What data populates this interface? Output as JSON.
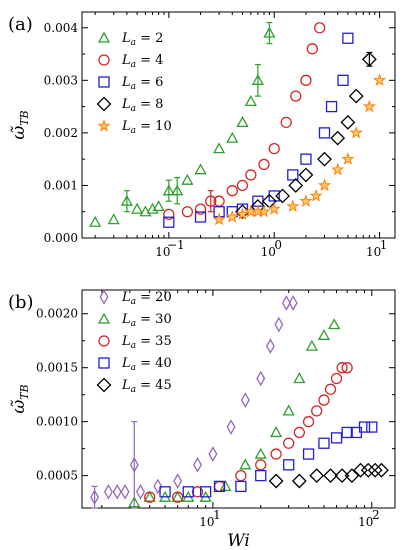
{
  "chart_data": [
    {
      "type": "scatter",
      "panel_label": "(a)",
      "ylabel": "ω̃",
      "ylabel_sub": "TB",
      "xlabel": "",
      "xscale": "log",
      "xlim": [
        0.015,
        14
      ],
      "ylim": [
        0,
        0.0043
      ],
      "x_ticks": [
        {
          "v": 0.1,
          "label": "10",
          "exp": "−1"
        },
        {
          "v": 1,
          "label": "10",
          "exp": "0"
        },
        {
          "v": 10,
          "label": "10",
          "exp": "1"
        }
      ],
      "y_ticks": [
        {
          "v": 0,
          "label": "0.000"
        },
        {
          "v": 0.001,
          "label": "0.001"
        },
        {
          "v": 0.002,
          "label": "0.002"
        },
        {
          "v": 0.003,
          "label": "0.003"
        },
        {
          "v": 0.004,
          "label": "0.004"
        }
      ],
      "legend_position": "top-left",
      "series": [
        {
          "name": "L",
          "sub": "a",
          "value": "= 2",
          "marker": "triangle",
          "color": "#2ca02c",
          "x": [
            0.02,
            0.03,
            0.04,
            0.05,
            0.06,
            0.07,
            0.08,
            0.1,
            0.12,
            0.15,
            0.2,
            0.3,
            0.4,
            0.5,
            0.6,
            0.7,
            0.9
          ],
          "y": [
            0.0003,
            0.00035,
            0.0007,
            0.00055,
            0.0005,
            0.00055,
            0.0006,
            0.0009,
            0.0009,
            0.0011,
            0.0013,
            0.0017,
            0.0019,
            0.0022,
            0.0026,
            0.003,
            0.0039
          ],
          "err": [
            0,
            0,
            0.0002,
            0,
            0,
            0,
            0,
            0.0002,
            0.00025,
            0,
            0,
            0,
            0,
            0,
            0,
            0.0003,
            0.0002
          ]
        },
        {
          "name": "L",
          "sub": "a",
          "value": "= 4",
          "marker": "circle",
          "color": "#d62728",
          "x": [
            0.1,
            0.15,
            0.2,
            0.25,
            0.3,
            0.4,
            0.5,
            0.6,
            0.8,
            1.0,
            1.3,
            1.6,
            2.0,
            2.3,
            2.7
          ],
          "y": [
            0.00045,
            0.0005,
            0.00055,
            0.0007,
            0.0007,
            0.0009,
            0.001,
            0.0012,
            0.0014,
            0.0017,
            0.0022,
            0.0027,
            0.003,
            0.0036,
            0.004
          ],
          "err": [
            0,
            0,
            0,
            0.0002,
            0,
            0,
            0,
            0,
            0,
            0,
            0,
            0,
            0,
            0,
            0
          ]
        },
        {
          "name": "L",
          "sub": "a",
          "value": "= 6",
          "marker": "square",
          "color": "#1f1fd6",
          "x": [
            0.1,
            0.2,
            0.3,
            0.4,
            0.5,
            0.7,
            1.0,
            1.5,
            2.0,
            3.0,
            3.5,
            4.5,
            5.0
          ],
          "y": [
            0.0003,
            0.0004,
            0.0005,
            0.0005,
            0.00055,
            0.0007,
            0.0008,
            0.0012,
            0.0015,
            0.002,
            0.0025,
            0.003,
            0.0038
          ],
          "err": [
            0,
            0,
            0,
            0,
            0,
            0,
            0,
            0,
            0,
            0,
            0,
            0,
            0
          ]
        },
        {
          "name": "L",
          "sub": "a",
          "value": "= 8",
          "marker": "diamond",
          "color": "#000000",
          "x": [
            0.5,
            0.7,
            0.9,
            1.2,
            1.6,
            2.0,
            3.0,
            4.0,
            5.0,
            6.0,
            8.0
          ],
          "y": [
            0.0005,
            0.0006,
            0.0007,
            0.0008,
            0.001,
            0.0012,
            0.0015,
            0.0019,
            0.0022,
            0.0027,
            0.0034
          ],
          "err": [
            0,
            0,
            0,
            0,
            0,
            0,
            0,
            0,
            0,
            0,
            0.00013
          ]
        },
        {
          "name": "L",
          "sub": "a",
          "value": "= 10",
          "marker": "star",
          "color": "#ff7f0e",
          "x": [
            0.3,
            0.4,
            0.5,
            0.6,
            0.7,
            0.8,
            1.0,
            1.5,
            2.0,
            2.5,
            3.0,
            4.0,
            5.0,
            6.0,
            8.0,
            10.0
          ],
          "y": [
            0.00035,
            0.0004,
            0.00045,
            0.0005,
            0.0005,
            0.0005,
            0.00055,
            0.0006,
            0.0007,
            0.0008,
            0.001,
            0.0013,
            0.0015,
            0.002,
            0.0025,
            0.003
          ],
          "err": [
            0,
            0,
            0,
            0,
            0,
            0,
            0,
            0,
            0,
            0,
            0,
            0,
            0,
            0,
            0,
            0
          ]
        }
      ]
    },
    {
      "type": "scatter",
      "panel_label": "(b)",
      "ylabel": "ω̃",
      "ylabel_sub": "TB",
      "xlabel": "Wi",
      "xscale": "log",
      "xlim": [
        1.5,
        140
      ],
      "ylim": [
        0.0002,
        0.00222
      ],
      "x_ticks": [
        {
          "v": 10,
          "label": "10",
          "exp": "1"
        },
        {
          "v": 100,
          "label": "10",
          "exp": "2"
        }
      ],
      "y_ticks": [
        {
          "v": 0.0005,
          "label": "0.0005"
        },
        {
          "v": 0.001,
          "label": "0.0010"
        },
        {
          "v": 0.0015,
          "label": "0.0015"
        },
        {
          "v": 0.002,
          "label": "0.0020"
        }
      ],
      "legend_position": "top-left",
      "series": [
        {
          "name": "L",
          "sub": "a",
          "value": "= 20",
          "marker": "thin-diamond",
          "color": "#9467bd",
          "x": [
            1.8,
            2.2,
            2.5,
            2.8,
            3.2,
            3.5,
            4.5,
            6.0,
            8.0,
            10.0,
            13.0,
            16.0,
            20.0,
            23.0,
            26.0,
            29.0,
            32.0
          ],
          "y": [
            0.0003,
            0.00035,
            0.00035,
            0.00035,
            0.0006,
            0.00035,
            0.0004,
            0.00045,
            0.0006,
            0.0007,
            0.00095,
            0.0012,
            0.0014,
            0.0017,
            0.0019,
            0.0021,
            0.0021
          ],
          "err": [
            0.0001,
            0,
            0,
            0,
            0.0004,
            0,
            0,
            0,
            0,
            0,
            0,
            0,
            0,
            0,
            0,
            0,
            0
          ]
        },
        {
          "name": "L",
          "sub": "a",
          "value": "= 30",
          "marker": "triangle",
          "color": "#2ca02c",
          "x": [
            3.2,
            4.0,
            5.0,
            6.0,
            7.0,
            9.0,
            12.0,
            16.0,
            20.0,
            25.0,
            30.0,
            35.0,
            42.0,
            50.0,
            58.0
          ],
          "y": [
            0.00025,
            0.0003,
            0.0003,
            0.0003,
            0.0003,
            0.0003,
            0.0004,
            0.0006,
            0.0007,
            0.0009,
            0.0011,
            0.0014,
            0.0017,
            0.0018,
            0.0019
          ],
          "err": [
            0,
            0,
            0,
            0,
            0,
            0,
            0,
            0,
            0,
            0,
            0,
            0,
            0,
            0,
            0
          ]
        },
        {
          "name": "L",
          "sub": "a",
          "value": "= 35",
          "marker": "circle",
          "color": "#d62728",
          "x": [
            4.0,
            6.0,
            8.0,
            11.0,
            15.0,
            20.0,
            25.0,
            30.0,
            35.0,
            40.0,
            45.0,
            50.0,
            55.0,
            60.0,
            65.0,
            70.0
          ],
          "y": [
            0.0003,
            0.0003,
            0.00035,
            0.0004,
            0.0005,
            0.0006,
            0.0007,
            0.0008,
            0.0009,
            0.001,
            0.0011,
            0.0012,
            0.0013,
            0.0014,
            0.0015,
            0.0015
          ],
          "err": [
            0,
            0,
            0,
            0,
            0,
            0,
            0,
            0,
            0,
            0,
            0,
            0,
            0,
            0,
            0,
            0
          ]
        },
        {
          "name": "L",
          "sub": "a",
          "value": "= 40",
          "marker": "square",
          "color": "#1f1fd6",
          "x": [
            5.0,
            7.0,
            9.0,
            11.0,
            15.0,
            20.0,
            30.0,
            40.0,
            50.0,
            60.0,
            70.0,
            80.0,
            90.0,
            100.0
          ],
          "y": [
            0.00035,
            0.00035,
            0.00035,
            0.0004,
            0.0004,
            0.0005,
            0.0006,
            0.0007,
            0.0008,
            0.00085,
            0.0009,
            0.0009,
            0.00095,
            0.00095
          ],
          "err": [
            0,
            0,
            0,
            0,
            0,
            0,
            0,
            0,
            0,
            0,
            0,
            0,
            0,
            0
          ]
        },
        {
          "name": "L",
          "sub": "a",
          "value": "= 45",
          "marker": "diamond",
          "color": "#000000",
          "x": [
            25.0,
            35.0,
            45.0,
            55.0,
            65.0,
            75.0,
            85.0,
            95.0,
            105.0,
            115.0
          ],
          "y": [
            0.00045,
            0.00045,
            0.0005,
            0.0005,
            0.0005,
            0.0005,
            0.00055,
            0.00055,
            0.00055,
            0.00055
          ],
          "err": [
            0,
            0,
            0,
            0,
            0,
            0,
            0,
            0,
            0,
            0
          ]
        }
      ]
    }
  ]
}
